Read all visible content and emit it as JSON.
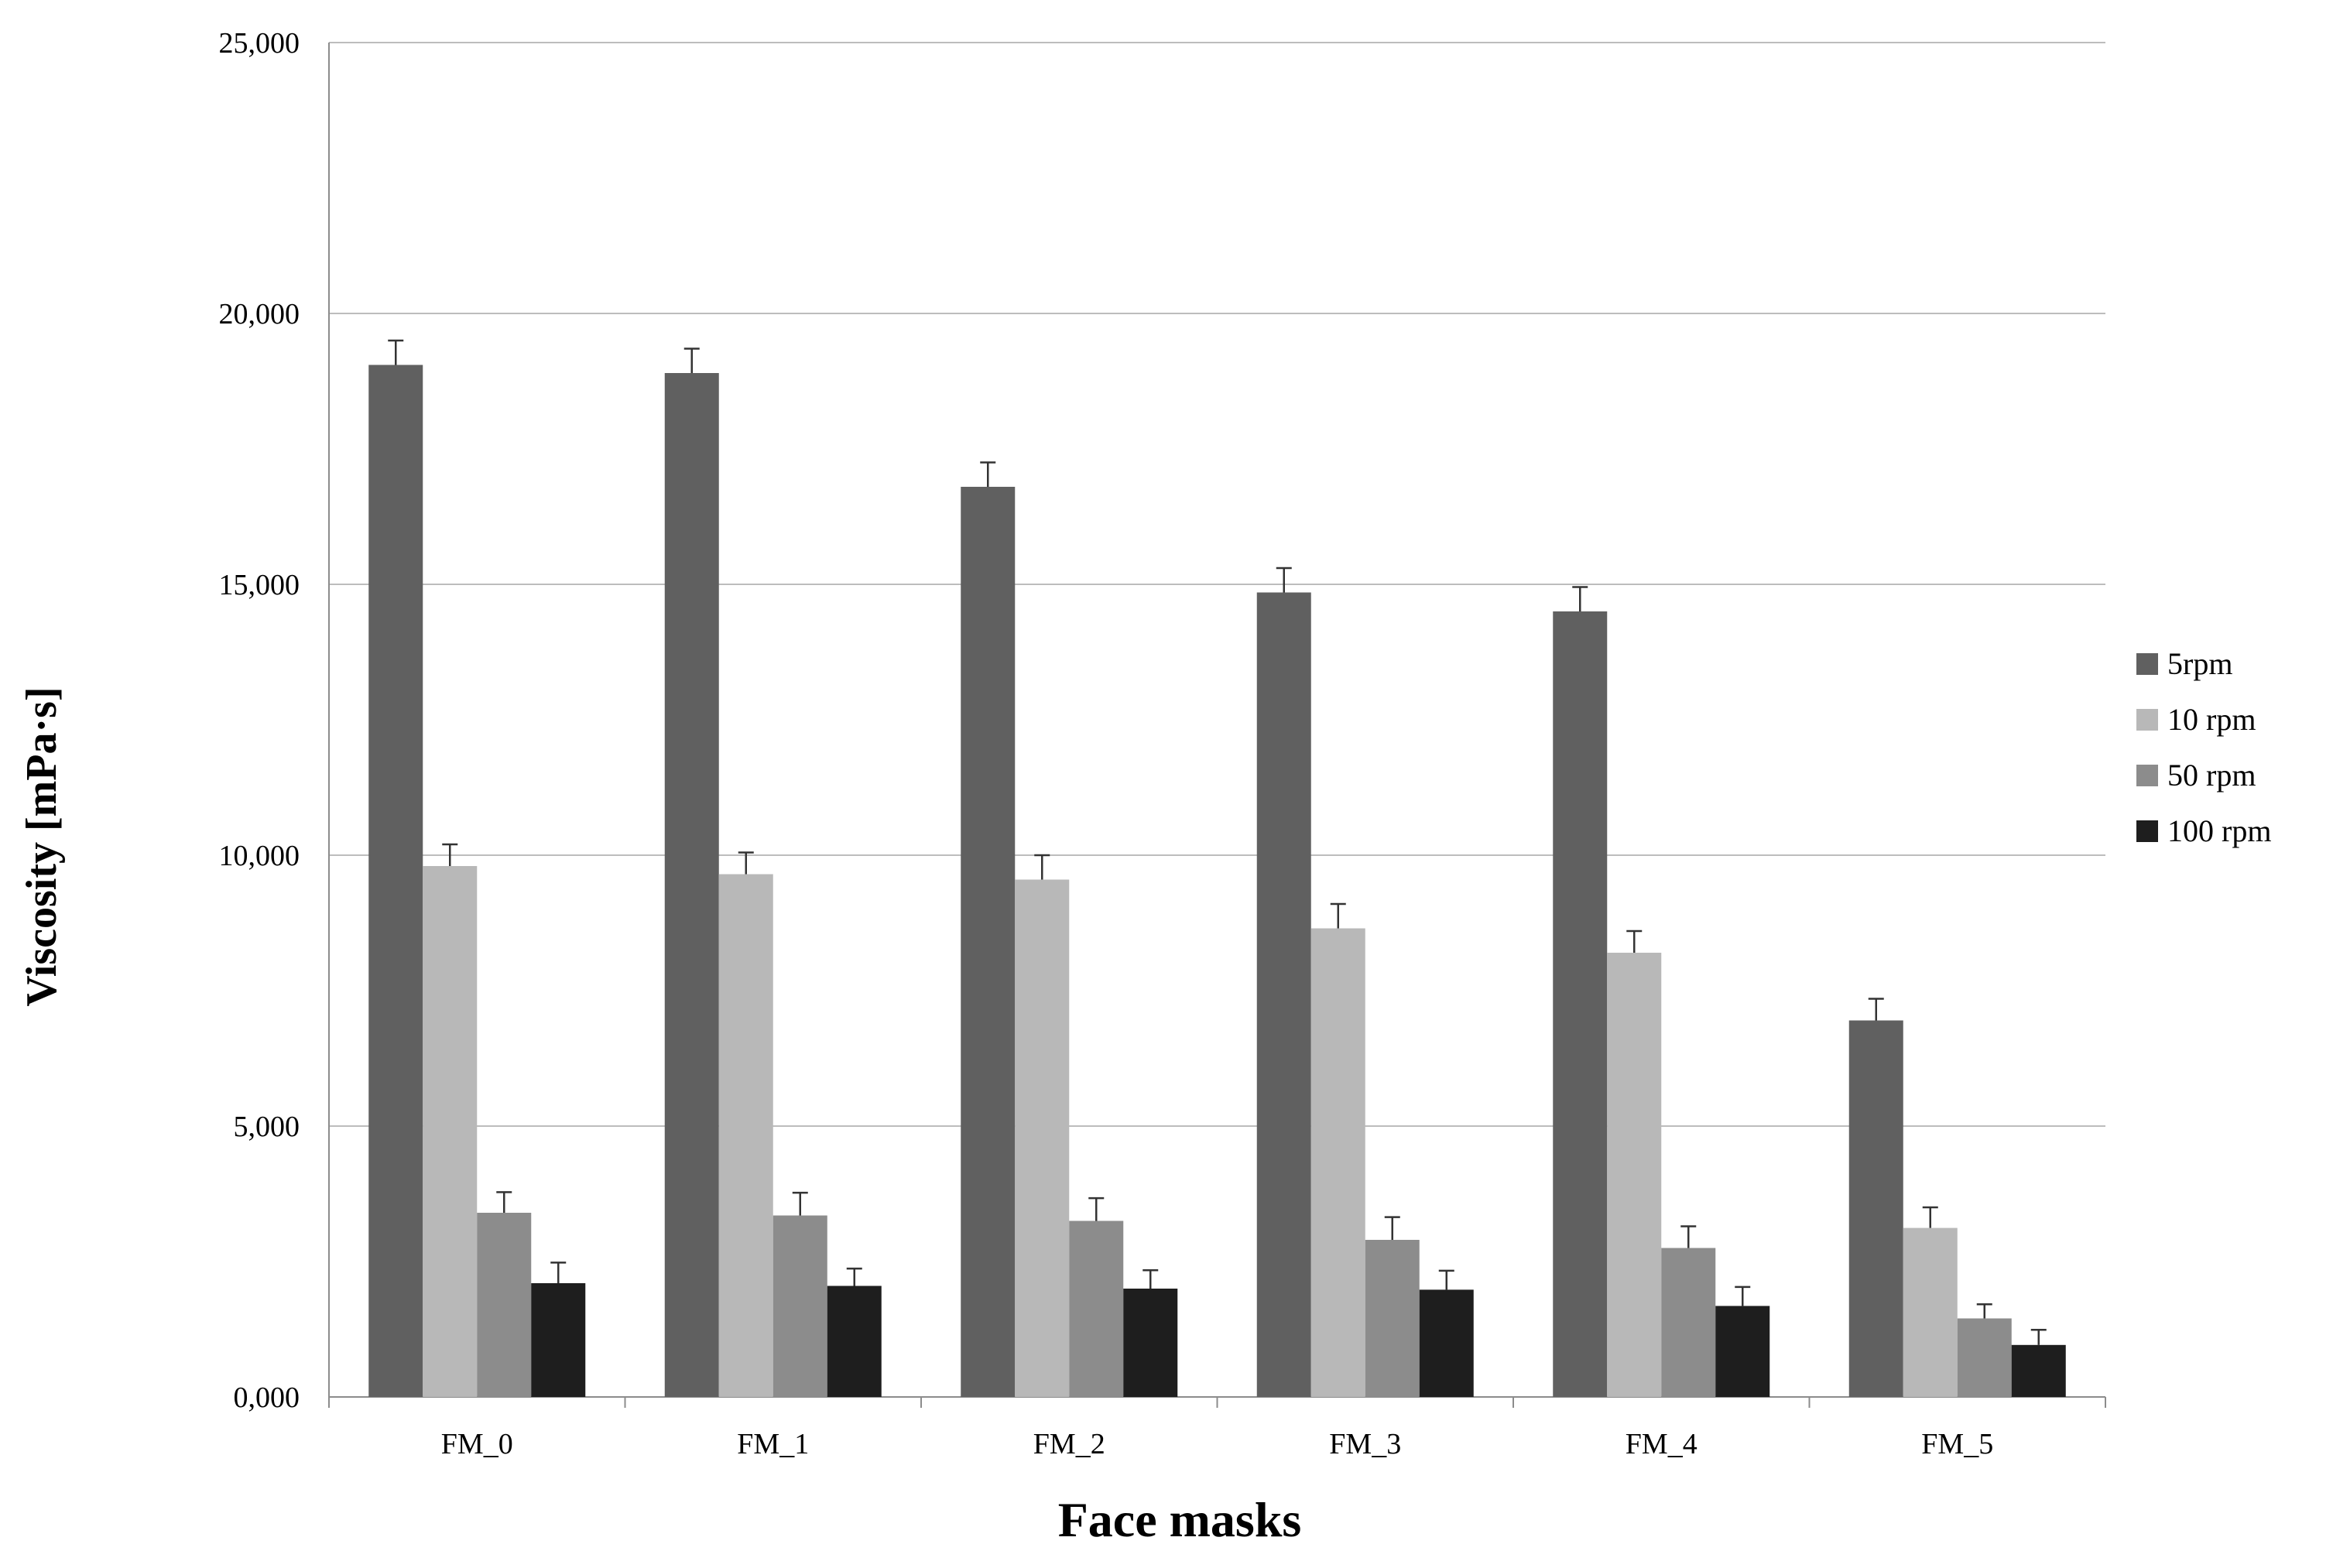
{
  "chart_data": {
    "type": "bar",
    "title": "",
    "xlabel": "Face masks",
    "ylabel": "Viscosity [mPa·s]",
    "categories": [
      "FM_0",
      "FM_1",
      "FM_2",
      "FM_3",
      "FM_4",
      "FM_5"
    ],
    "ylim": [
      0,
      25000
    ],
    "yticks": [
      0,
      5000,
      10000,
      15000,
      20000,
      25000
    ],
    "ytick_labels": [
      "0,000",
      "5,000",
      "10,000",
      "15,000",
      "20,000",
      "25,000"
    ],
    "grid": true,
    "legend_position": "right",
    "series": [
      {
        "name": "5rpm",
        "color": "#606060",
        "values": [
          19050,
          18900,
          16800,
          14850,
          14500,
          6950
        ],
        "errors": [
          450,
          450,
          450,
          450,
          450,
          400
        ]
      },
      {
        "name": "10 rpm",
        "color": "#b8b8b8",
        "values": [
          9800,
          9650,
          9550,
          8650,
          8200,
          3120
        ],
        "errors": [
          400,
          400,
          450,
          450,
          400,
          380
        ]
      },
      {
        "name": "50 rpm",
        "color": "#8c8c8c",
        "values": [
          3400,
          3350,
          3250,
          2900,
          2750,
          1450
        ],
        "errors": [
          380,
          420,
          420,
          420,
          400,
          260
        ]
      },
      {
        "name": "100 rpm",
        "color": "#1e1e1e",
        "values": [
          2100,
          2050,
          2000,
          1980,
          1680,
          960
        ],
        "errors": [
          380,
          320,
          340,
          350,
          350,
          280
        ]
      }
    ]
  }
}
